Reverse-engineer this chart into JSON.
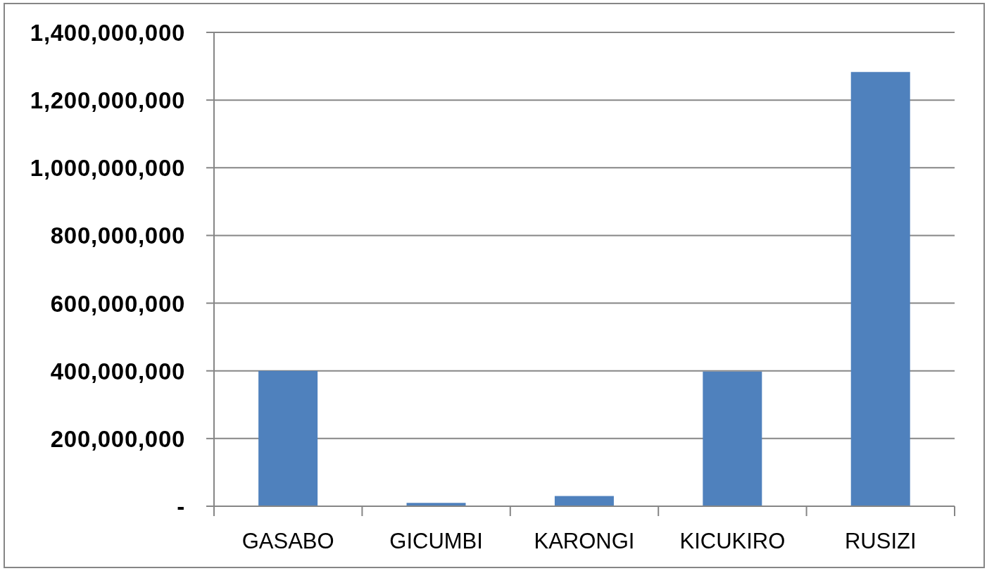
{
  "chart_data": {
    "type": "bar",
    "categories": [
      "GASABO",
      "GICUMBI",
      "KARONGI",
      "KICUKIRO",
      "RUSIZI"
    ],
    "values": [
      400000000,
      10000000,
      30000000,
      398000000,
      1283000000
    ],
    "color": "#4f81bd",
    "ylim": [
      0,
      1400000000
    ],
    "yticks": [
      {
        "value": 0,
        "label": "-"
      },
      {
        "value": 200000000,
        "label": "200,000,000"
      },
      {
        "value": 400000000,
        "label": "400,000,000"
      },
      {
        "value": 600000000,
        "label": "600,000,000"
      },
      {
        "value": 800000000,
        "label": "800,000,000"
      },
      {
        "value": 1000000000,
        "label": "1,000,000,000"
      },
      {
        "value": 1200000000,
        "label": "1,200,000,000"
      },
      {
        "value": 1400000000,
        "label": "1,400,000,000"
      }
    ],
    "grid": "y"
  }
}
